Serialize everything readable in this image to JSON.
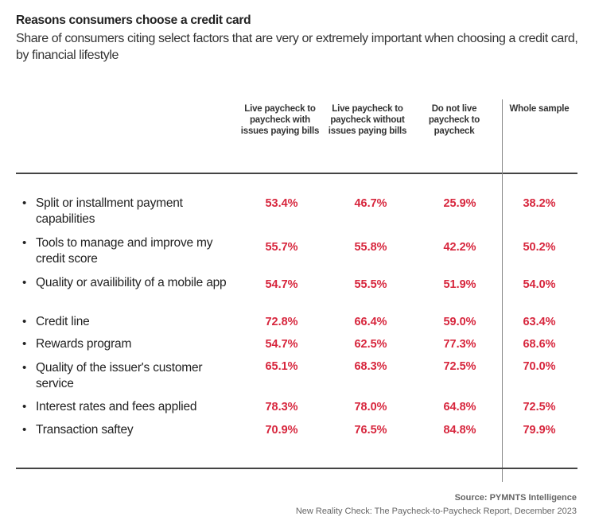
{
  "title": "Reasons consumers choose a credit card",
  "subtitle": "Share of consumers citing select factors that are very or extremely important when choosing a credit card, by financial lifestyle",
  "colors": {
    "value": "#d7263d",
    "text": "#222222"
  },
  "chart_data": {
    "type": "table",
    "columns": [
      "Live paycheck to paycheck with issues paying bills",
      "Live paycheck to paycheck without issues paying bills",
      "Do not live paycheck to paycheck",
      "Whole sample"
    ],
    "rows": [
      {
        "label": "Split or installment payment capabilities",
        "values": [
          "53.4%",
          "46.7%",
          "25.9%",
          "38.2%"
        ]
      },
      {
        "label": "Tools to manage and improve my credit score",
        "values": [
          "55.7%",
          "55.8%",
          "42.2%",
          "50.2%"
        ]
      },
      {
        "label": "Quality or availibility of a mobile app",
        "values": [
          "54.7%",
          "55.5%",
          "51.9%",
          "54.0%"
        ]
      },
      {
        "label": "Credit line",
        "values": [
          "72.8%",
          "66.4%",
          "59.0%",
          "63.4%"
        ]
      },
      {
        "label": "Rewards program",
        "values": [
          "54.7%",
          "62.5%",
          "77.3%",
          "68.6%"
        ]
      },
      {
        "label": "Quality of the issuer's customer service",
        "values": [
          "65.1%",
          "68.3%",
          "72.5%",
          "70.0%"
        ]
      },
      {
        "label": "Interest rates and fees applied",
        "values": [
          "78.3%",
          "78.0%",
          "64.8%",
          "72.5%"
        ]
      },
      {
        "label": "Transaction saftey",
        "values": [
          "70.9%",
          "76.5%",
          "84.8%",
          "79.9%"
        ]
      }
    ]
  },
  "bullet": "•",
  "source": "Source: PYMNTS Intelligence",
  "report": "New Reality Check: The Paycheck-to-Paycheck Report, December 2023"
}
